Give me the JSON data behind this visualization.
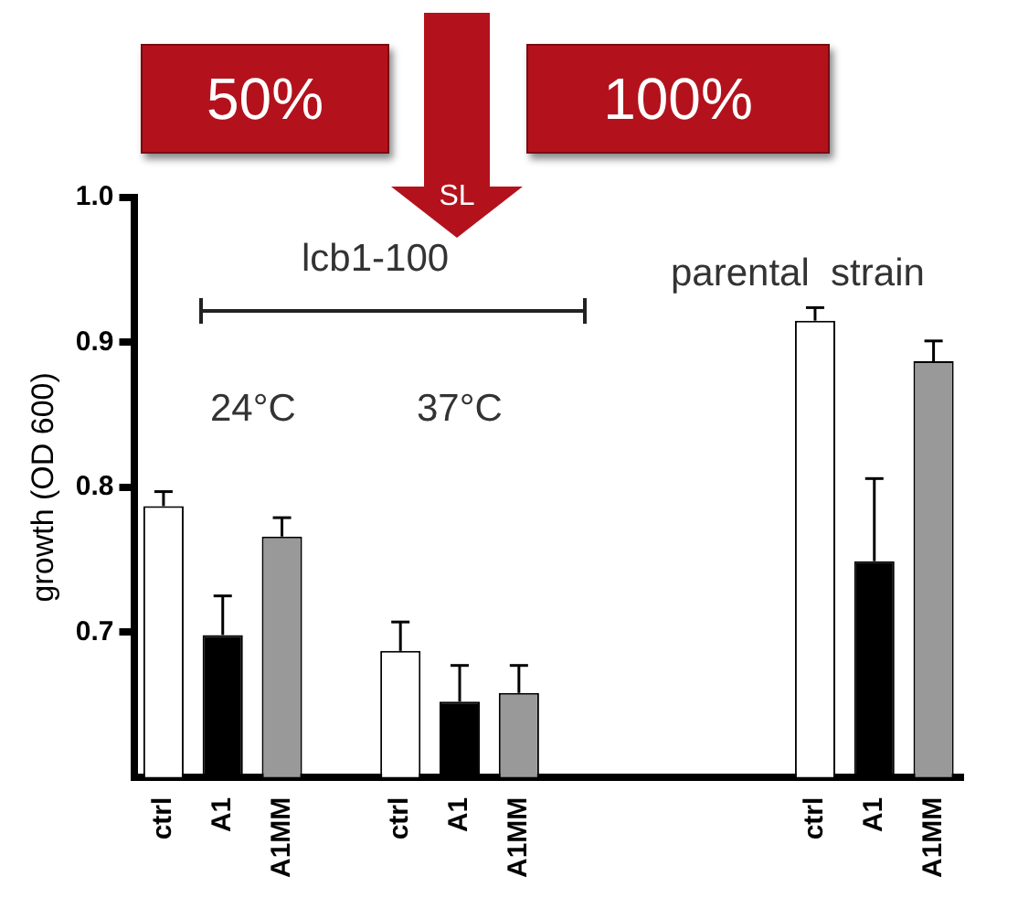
{
  "chart_data": {
    "type": "bar",
    "ylabel": "growth (OD 600)",
    "categories": [
      "ctrl",
      "A1",
      "A1MM",
      null,
      "ctrl",
      "A1",
      "A1MM",
      null,
      null,
      null,
      null,
      "ctrl",
      "A1",
      "A1MM"
    ],
    "values": [
      0.787,
      0.698,
      0.766,
      null,
      0.687,
      0.652,
      0.658,
      null,
      null,
      null,
      null,
      0.915,
      0.749,
      0.887
    ],
    "errors": [
      [
        0.787,
        0.797
      ],
      [
        0.698,
        0.725
      ],
      [
        0.766,
        0.779
      ],
      null,
      [
        0.687,
        0.707
      ],
      [
        0.652,
        0.677
      ],
      [
        0.658,
        0.677
      ],
      null,
      null,
      null,
      null,
      [
        0.915,
        0.924
      ],
      [
        0.749,
        0.806
      ],
      [
        0.887,
        0.901
      ]
    ],
    "colors": [
      "#ffffff",
      "#000000",
      "#999999",
      "#ffffff",
      "#ffffff",
      "#000000",
      "#999999",
      "#ffffff",
      "#ffffff",
      "#ffffff",
      "#ffffff",
      "#ffffff",
      "#000000",
      "#999999"
    ],
    "ylim": [
      0.6,
      1.0
    ],
    "yticks": [
      0.7,
      0.8,
      0.9,
      {
        "value": 1.0,
        "label": "1.0"
      }
    ],
    "grid": false,
    "legend": false,
    "annotations": [
      "50%",
      "100%",
      "SL",
      "lcb1-100",
      "24°C",
      "37°C",
      "parental  strain"
    ]
  }
}
